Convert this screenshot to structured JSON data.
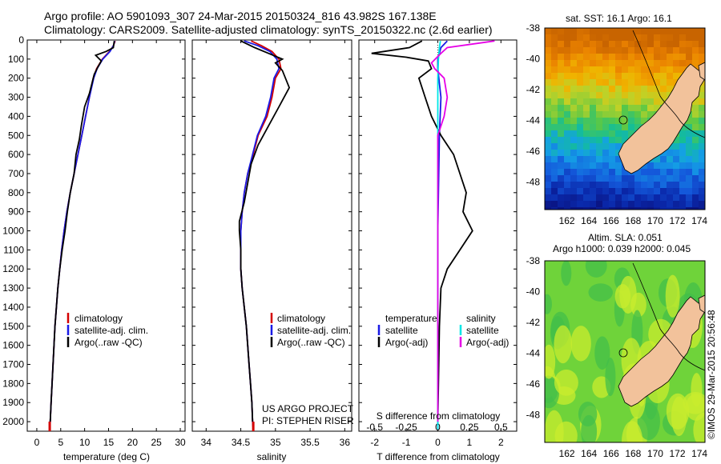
{
  "title_line1": "Argo profile: AO 5901093_307 24-Mar-2015 20150324_816 43.982S 167.138E",
  "title_line2": "Climatology: CARS2009. Satellite-adjusted climatology: synTS_20150322.nc (2.6d earlier)",
  "project_lines": [
    "US ARGO PROJECT",
    "PI: STEPHEN RISER"
  ],
  "copyright": "©IMOS 29-Mar-2015 20:56:48",
  "colors": {
    "climatology": "#d40000",
    "satellite": "#1a1ae6",
    "argo": "#000000",
    "sal_satellite": "#00e6e6",
    "sal_argo": "#e600e6",
    "land": "#f2c29b"
  },
  "chart_data": [
    {
      "type": "line",
      "panel": "temperature",
      "xlabel": "temperature (deg C)",
      "xlim": [
        -2,
        31
      ],
      "xticks": [
        0,
        5,
        10,
        15,
        20,
        25,
        30
      ],
      "ylim": [
        0,
        2050
      ],
      "yticks": [
        0,
        100,
        200,
        300,
        400,
        500,
        600,
        700,
        800,
        900,
        1000,
        1100,
        1200,
        1300,
        1400,
        1500,
        1600,
        1700,
        1800,
        1900,
        2000
      ],
      "y_reversed": true,
      "legend": [
        "climatology",
        "satellite-adj. clim.",
        "Argo(..raw -QC)"
      ],
      "series": [
        {
          "name": "climatology",
          "color": "#d40000",
          "points": [
            [
              16.4,
              5
            ],
            [
              16.0,
              30
            ],
            [
              15.2,
              60
            ],
            [
              13.7,
              100
            ],
            [
              12.5,
              150
            ],
            [
              11.8,
              200
            ],
            [
              11.0,
              300
            ],
            [
              10.2,
              400
            ],
            [
              9.4,
              500
            ],
            [
              8.6,
              600
            ],
            [
              7.8,
              700
            ],
            [
              7.0,
              800
            ],
            [
              6.3,
              900
            ],
            [
              5.7,
              1000
            ],
            [
              5.2,
              1100
            ],
            [
              4.8,
              1200
            ],
            [
              4.4,
              1300
            ],
            [
              4.1,
              1400
            ],
            [
              3.8,
              1500
            ],
            [
              3.6,
              1600
            ],
            [
              3.4,
              1700
            ],
            [
              3.2,
              1800
            ],
            [
              3.0,
              1900
            ],
            [
              2.8,
              2000
            ],
            [
              2.7,
              2040
            ]
          ]
        },
        {
          "name": "satellite-adj. clim.",
          "color": "#1a1ae6",
          "points": [
            [
              16.3,
              5
            ],
            [
              16.0,
              30
            ],
            [
              15.3,
              60
            ],
            [
              13.8,
              100
            ],
            [
              12.6,
              150
            ],
            [
              11.9,
              200
            ],
            [
              11.0,
              300
            ],
            [
              10.2,
              400
            ],
            [
              9.4,
              500
            ],
            [
              8.6,
              600
            ],
            [
              7.8,
              700
            ],
            [
              7.0,
              800
            ],
            [
              6.3,
              900
            ],
            [
              5.7,
              1000
            ],
            [
              5.2,
              1100
            ],
            [
              4.8,
              1200
            ],
            [
              4.4,
              1300
            ],
            [
              4.1,
              1400
            ],
            [
              3.8,
              1500
            ],
            [
              3.6,
              1600
            ],
            [
              3.4,
              1700
            ],
            [
              3.2,
              1800
            ],
            [
              3.0,
              1900
            ],
            [
              2.8,
              2000
            ],
            [
              2.7,
              2040
            ]
          ]
        },
        {
          "name": "Argo(..raw -QC)",
          "color": "#000000",
          "points": [
            [
              16.2,
              5
            ],
            [
              16.0,
              40
            ],
            [
              14.5,
              60
            ],
            [
              12.3,
              80
            ],
            [
              13.5,
              110
            ],
            [
              12.8,
              140
            ],
            [
              12.0,
              180
            ],
            [
              11.6,
              220
            ],
            [
              11.0,
              280
            ],
            [
              10.0,
              350
            ],
            [
              9.3,
              450
            ],
            [
              8.9,
              520
            ],
            [
              8.2,
              600
            ],
            [
              7.8,
              700
            ],
            [
              7.0,
              800
            ],
            [
              6.4,
              900
            ],
            [
              5.9,
              1000
            ],
            [
              5.3,
              1100
            ],
            [
              4.8,
              1200
            ],
            [
              4.4,
              1300
            ],
            [
              4.1,
              1400
            ],
            [
              3.8,
              1500
            ],
            [
              3.6,
              1600
            ],
            [
              3.4,
              1700
            ],
            [
              3.2,
              1800
            ],
            [
              3.0,
              1900
            ],
            [
              2.8,
              2000
            ]
          ]
        }
      ]
    },
    {
      "type": "line",
      "panel": "salinity",
      "xlabel": "salinity",
      "xlim": [
        33.8,
        36.1
      ],
      "xticks": [
        34,
        34.5,
        35,
        35.5,
        36
      ],
      "ylim": [
        0,
        2050
      ],
      "y_reversed": true,
      "legend": [
        "climatology",
        "satellite-adj. clim.",
        "Argo(..raw -QC)"
      ],
      "series": [
        {
          "name": "climatology",
          "color": "#d40000",
          "points": [
            [
              34.65,
              5
            ],
            [
              34.8,
              30
            ],
            [
              34.95,
              60
            ],
            [
              35.05,
              100
            ],
            [
              35.08,
              150
            ],
            [
              35.0,
              200
            ],
            [
              34.95,
              300
            ],
            [
              34.88,
              400
            ],
            [
              34.75,
              500
            ],
            [
              34.68,
              600
            ],
            [
              34.6,
              700
            ],
            [
              34.55,
              800
            ],
            [
              34.52,
              900
            ],
            [
              34.5,
              1000
            ],
            [
              34.5,
              1100
            ],
            [
              34.5,
              1200
            ],
            [
              34.52,
              1300
            ],
            [
              34.55,
              1400
            ],
            [
              34.58,
              1500
            ],
            [
              34.6,
              1600
            ],
            [
              34.62,
              1700
            ],
            [
              34.64,
              1800
            ],
            [
              34.66,
              1900
            ],
            [
              34.67,
              2000
            ],
            [
              34.68,
              2040
            ]
          ]
        },
        {
          "name": "satellite-adj. clim.",
          "color": "#1a1ae6",
          "points": [
            [
              34.55,
              5
            ],
            [
              34.75,
              30
            ],
            [
              34.92,
              60
            ],
            [
              35.02,
              100
            ],
            [
              35.05,
              150
            ],
            [
              34.98,
              200
            ],
            [
              34.93,
              300
            ],
            [
              34.86,
              400
            ],
            [
              34.74,
              500
            ],
            [
              34.67,
              600
            ],
            [
              34.6,
              700
            ],
            [
              34.55,
              800
            ],
            [
              34.52,
              900
            ],
            [
              34.5,
              1000
            ],
            [
              34.5,
              1100
            ],
            [
              34.5,
              1200
            ],
            [
              34.52,
              1300
            ],
            [
              34.55,
              1400
            ],
            [
              34.58,
              1500
            ],
            [
              34.6,
              1600
            ],
            [
              34.62,
              1700
            ],
            [
              34.64,
              1800
            ],
            [
              34.66,
              1900
            ],
            [
              34.67,
              2000
            ],
            [
              34.68,
              2040
            ]
          ]
        },
        {
          "name": "Argo(..raw -QC)",
          "color": "#000000",
          "points": [
            [
              34.5,
              5
            ],
            [
              34.7,
              40
            ],
            [
              34.9,
              70
            ],
            [
              35.0,
              85
            ],
            [
              35.1,
              100
            ],
            [
              35.0,
              120
            ],
            [
              35.1,
              160
            ],
            [
              35.2,
              250
            ],
            [
              35.05,
              350
            ],
            [
              34.9,
              450
            ],
            [
              34.75,
              550
            ],
            [
              34.65,
              650
            ],
            [
              34.6,
              750
            ],
            [
              34.55,
              850
            ],
            [
              34.48,
              950
            ],
            [
              34.48,
              1000
            ],
            [
              34.5,
              1100
            ],
            [
              34.5,
              1200
            ],
            [
              34.52,
              1300
            ],
            [
              34.55,
              1400
            ],
            [
              34.58,
              1500
            ],
            [
              34.6,
              1600
            ],
            [
              34.62,
              1700
            ],
            [
              34.64,
              1800
            ],
            [
              34.66,
              1900
            ],
            [
              34.67,
              2000
            ]
          ]
        }
      ]
    },
    {
      "type": "line",
      "panel": "differences",
      "xlabel": "T difference from climatology",
      "xlabel_top": "S difference from climatology",
      "xlim": [
        -2.5,
        2.5
      ],
      "xticks": [
        -2,
        -1,
        0,
        1,
        2
      ],
      "xticks_top": [
        -0.5,
        -0.25,
        0,
        0.25,
        0.5
      ],
      "ylim": [
        0,
        2050
      ],
      "y_reversed": true,
      "legend_headers": [
        "temperature",
        "salinity"
      ],
      "legend": [
        "satellite",
        "Argo(-adj)",
        "satellite",
        "Argo(-adj)"
      ],
      "series": [
        {
          "name": "satellite",
          "group": "temperature",
          "color": "#1a1ae6",
          "points": [
            [
              0.3,
              5
            ],
            [
              0.1,
              40
            ],
            [
              0.0,
              100
            ],
            [
              0.0,
              150
            ],
            [
              0.1,
              300
            ],
            [
              0.05,
              500
            ],
            [
              0.0,
              1000
            ],
            [
              0.0,
              1500
            ],
            [
              0.0,
              2040
            ]
          ]
        },
        {
          "name": "Argo(-adj)",
          "group": "temperature",
          "color": "#000000",
          "points": [
            [
              -0.5,
              5
            ],
            [
              -0.9,
              40
            ],
            [
              -2.1,
              70
            ],
            [
              -1.0,
              90
            ],
            [
              -0.3,
              110
            ],
            [
              -0.2,
              150
            ],
            [
              -0.6,
              200
            ],
            [
              -0.4,
              300
            ],
            [
              -0.2,
              400
            ],
            [
              0.1,
              500
            ],
            [
              0.5,
              600
            ],
            [
              0.7,
              700
            ],
            [
              0.9,
              800
            ],
            [
              0.8,
              900
            ],
            [
              1.1,
              1000
            ],
            [
              0.7,
              1100
            ],
            [
              0.3,
              1200
            ],
            [
              0.1,
              1300
            ],
            [
              0.05,
              1500
            ],
            [
              0.0,
              2000
            ]
          ]
        },
        {
          "name": "satellite",
          "group": "salinity",
          "color": "#00e6e6",
          "points": [
            [
              0.08,
              5
            ],
            [
              0.05,
              40
            ],
            [
              0.02,
              100
            ],
            [
              0.0,
              200
            ],
            [
              0.0,
              500
            ],
            [
              0.0,
              1000
            ],
            [
              0.0,
              2040
            ]
          ]
        },
        {
          "name": "Argo(-adj)",
          "group": "salinity",
          "color": "#e600e6",
          "points": [
            [
              1.8,
              5
            ],
            [
              0.3,
              40
            ],
            [
              0.1,
              70
            ],
            [
              -0.2,
              120
            ],
            [
              -0.1,
              150
            ],
            [
              0.2,
              200
            ],
            [
              0.3,
              300
            ],
            [
              0.2,
              400
            ],
            [
              0.0,
              500
            ],
            [
              0.0,
              1000
            ],
            [
              0.0,
              2000
            ]
          ]
        }
      ]
    },
    {
      "type": "heatmap",
      "panel": "sst-map",
      "title": "sat. SST: 16.1  Argo: 16.1",
      "xlim": [
        160,
        174.5
      ],
      "ylim": [
        -49.8,
        -38
      ],
      "xticks": [
        162,
        164,
        166,
        168,
        170,
        172,
        174
      ],
      "yticks": [
        -38,
        -40,
        -42,
        -44,
        -46,
        -48
      ],
      "profile_location": [
        167.138,
        -43.982
      ]
    },
    {
      "type": "heatmap",
      "panel": "sla-map",
      "title_lines": [
        "Altim. SLA: 0.051",
        "Argo h1000: 0.039  h2000: 0.045"
      ],
      "xlim": [
        160,
        174.5
      ],
      "ylim": [
        -49.8,
        -38
      ],
      "xticks": [
        162,
        164,
        166,
        168,
        170,
        172,
        174
      ],
      "yticks": [
        -38,
        -40,
        -42,
        -44,
        -46,
        -48
      ],
      "profile_location": [
        167.138,
        -43.982
      ]
    }
  ]
}
